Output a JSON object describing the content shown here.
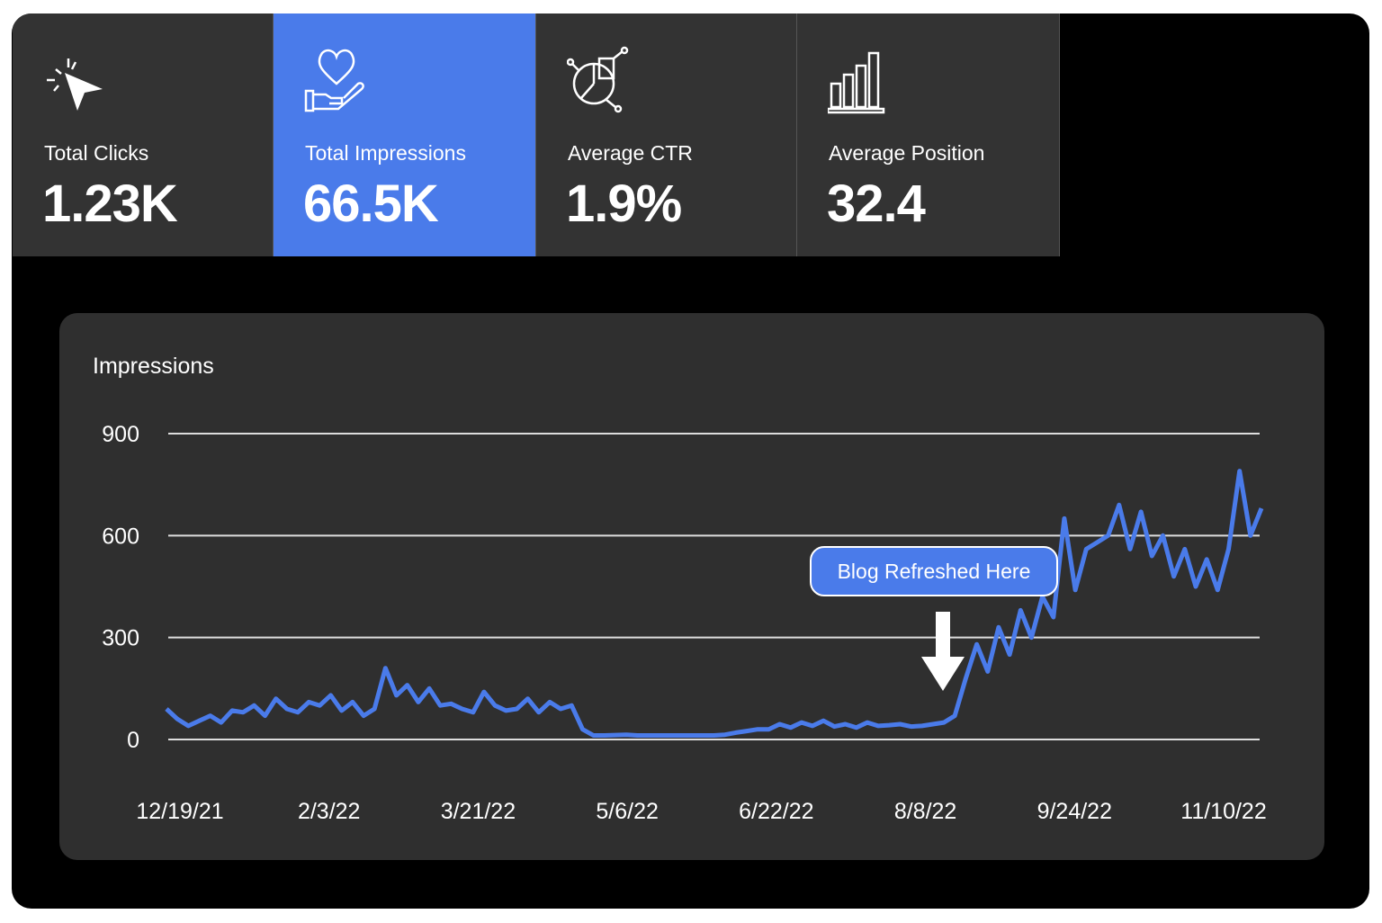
{
  "metrics": [
    {
      "label": "Total Clicks",
      "value": "1.23K",
      "icon": "cursor-click-icon"
    },
    {
      "label": "Total Impressions",
      "value": "66.5K",
      "icon": "heart-hand-icon"
    },
    {
      "label": "Average CTR",
      "value": "1.9%",
      "icon": "pie-chart-icon"
    },
    {
      "label": "Average Position",
      "value": "32.4",
      "icon": "bar-chart-icon"
    }
  ],
  "colors": {
    "accent": "#4a7bea",
    "card": "#333333",
    "panel": "#2f2f2f"
  },
  "annotation": {
    "label": "Blog Refreshed Here"
  },
  "chart_data": {
    "type": "line",
    "title": "Impressions",
    "ylim": [
      0,
      900
    ],
    "yticks": [
      0,
      300,
      600,
      900
    ],
    "ytick_labels": [
      "0",
      "300",
      "600",
      "900"
    ],
    "xtick_labels": [
      "12/19/21",
      "2/3/22",
      "3/21/22",
      "5/6/22",
      "6/22/22",
      "8/8/22",
      "9/24/22",
      "11/10/22"
    ],
    "grid": true,
    "series": [
      {
        "name": "Impressions",
        "color": "#4a7bea",
        "values": [
          90,
          60,
          40,
          55,
          70,
          50,
          85,
          80,
          100,
          70,
          120,
          90,
          80,
          110,
          100,
          130,
          85,
          110,
          70,
          90,
          210,
          130,
          160,
          110,
          150,
          100,
          105,
          90,
          80,
          140,
          100,
          85,
          90,
          120,
          80,
          110,
          90,
          100,
          30,
          12,
          12,
          13,
          14,
          12,
          12,
          12,
          12,
          12,
          12,
          12,
          12,
          14,
          20,
          25,
          30,
          30,
          45,
          35,
          50,
          40,
          55,
          38,
          45,
          35,
          50,
          40,
          42,
          45,
          38,
          40,
          45,
          50,
          70,
          180,
          280,
          200,
          330,
          250,
          380,
          300,
          420,
          360,
          650,
          440,
          560,
          580,
          600,
          690,
          560,
          670,
          540,
          600,
          480,
          560,
          450,
          530,
          440,
          560,
          790,
          600,
          680
        ]
      }
    ]
  }
}
